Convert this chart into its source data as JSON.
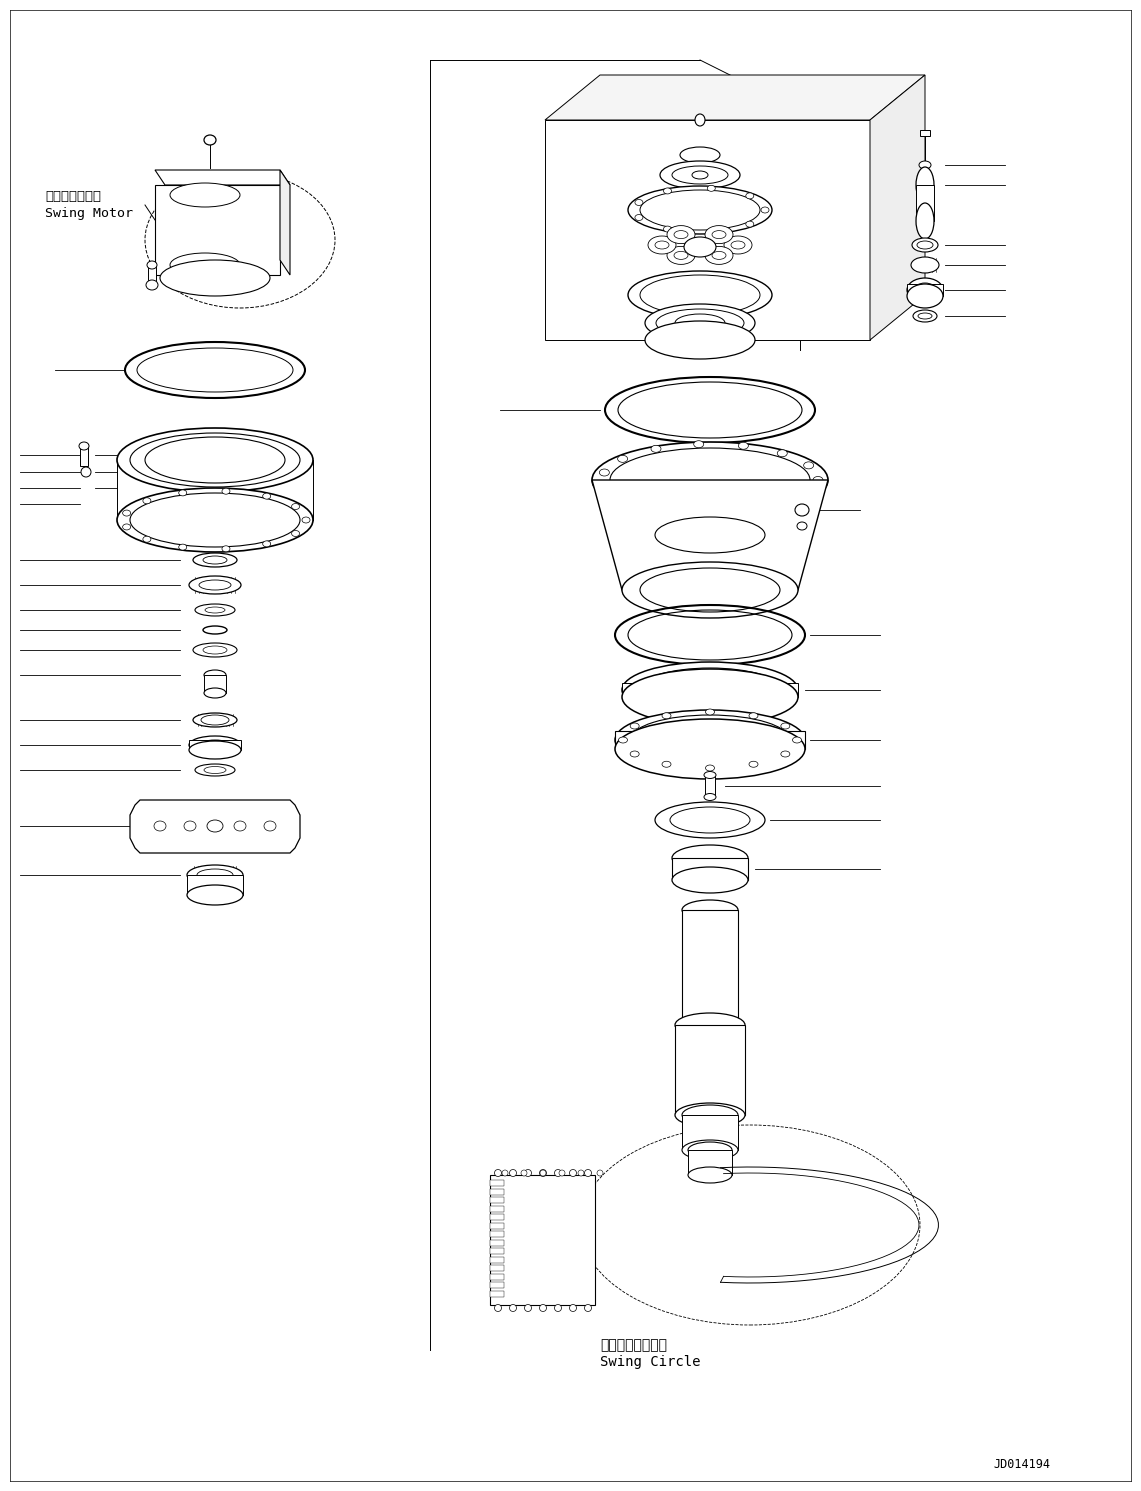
{
  "background_color": "#ffffff",
  "line_color": "#000000",
  "label_swing_motor_jp": "スイングモータ",
  "label_swing_motor_en": "Swing Motor",
  "label_swing_circle_jp": "スイングサークル",
  "label_swing_circle_en": "Swing Circle",
  "label_code": "JD014194",
  "fig_width": 11.41,
  "fig_height": 14.91,
  "dpi": 100
}
